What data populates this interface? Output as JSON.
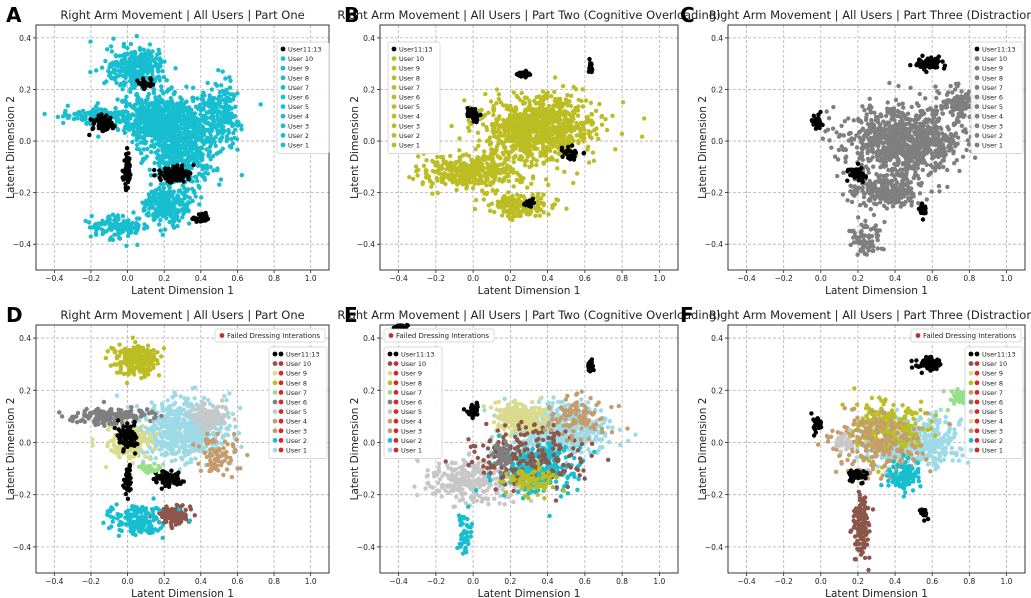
{
  "colors": {
    "black": "#000000",
    "cyan": "#17becf",
    "olive": "#bcbd22",
    "gray": "#7f7f7f",
    "brown": "#8c564b",
    "light_olive": "#dbdb8d",
    "light_gray": "#c7c7c7",
    "light_cyan": "#9edae5",
    "tan": "#c49c6e",
    "light_green": "#98df8a",
    "red": "#d62728"
  },
  "chart_data": [
    {
      "panel": "A",
      "type": "scatter",
      "title": "Right Arm Movement | All Users | Part One",
      "xlabel": "Latent Dimension 1",
      "ylabel": "Latent Dimension 2",
      "xlim": [
        -0.5,
        1.1
      ],
      "ylim": [
        -0.5,
        0.45
      ],
      "xticks": [
        "−0.4",
        "−0.2",
        "0.0",
        "0.2",
        "0.4",
        "0.6",
        "0.8",
        "1.0"
      ],
      "yticks": [
        "−0.4",
        "−0.2",
        "0.0",
        "0.2",
        "0.4"
      ],
      "legend_position": "upper right",
      "legend_title": "",
      "legend": [
        "User11:13",
        "User 10",
        "User 9",
        "User 8",
        "User 7",
        "User 6",
        "User 5",
        "User 4",
        "User 3",
        "User 2",
        "User 1"
      ],
      "legend_colors": [
        "black",
        "cyan",
        "cyan",
        "cyan",
        "cyan",
        "cyan",
        "cyan",
        "cyan",
        "cyan",
        "cyan",
        "cyan"
      ],
      "clusters": [
        {
          "c": "cyan",
          "cx": 0.2,
          "cy": 0.08,
          "rx": 0.25,
          "ry": 0.1,
          "n": 700
        },
        {
          "c": "cyan",
          "cx": 0.05,
          "cy": 0.28,
          "rx": 0.16,
          "ry": 0.08,
          "n": 300
        },
        {
          "c": "cyan",
          "cx": 0.3,
          "cy": -0.05,
          "rx": 0.18,
          "ry": 0.12,
          "n": 400
        },
        {
          "c": "cyan",
          "cx": 0.22,
          "cy": -0.25,
          "rx": 0.14,
          "ry": 0.07,
          "n": 250
        },
        {
          "c": "cyan",
          "cx": -0.05,
          "cy": -0.33,
          "rx": 0.15,
          "ry": 0.05,
          "n": 120
        },
        {
          "c": "cyan",
          "cx": 0.5,
          "cy": 0.1,
          "rx": 0.12,
          "ry": 0.12,
          "n": 200
        },
        {
          "c": "cyan",
          "cx": -0.15,
          "cy": 0.1,
          "rx": 0.2,
          "ry": 0.03,
          "n": 150
        },
        {
          "c": "black",
          "cx": -0.13,
          "cy": 0.07,
          "rx": 0.05,
          "ry": 0.03,
          "n": 90
        },
        {
          "c": "black",
          "cx": 0.26,
          "cy": -0.13,
          "rx": 0.1,
          "ry": 0.03,
          "n": 90
        },
        {
          "c": "black",
          "cx": 0.0,
          "cy": -0.12,
          "rx": 0.02,
          "ry": 0.08,
          "n": 50
        },
        {
          "c": "black",
          "cx": 0.41,
          "cy": -0.3,
          "rx": 0.05,
          "ry": 0.015,
          "n": 40
        },
        {
          "c": "black",
          "cx": 0.1,
          "cy": 0.22,
          "rx": 0.05,
          "ry": 0.02,
          "n": 30
        }
      ]
    },
    {
      "panel": "B",
      "type": "scatter",
      "title": "Right Arm Movement | All Users | Part Two (Cognitive Overloading)",
      "xlabel": "Latent Dimension 1",
      "ylabel": "Latent Dimension 2",
      "xlim": [
        -0.5,
        1.1
      ],
      "ylim": [
        -0.5,
        0.45
      ],
      "xticks": [
        "−0.4",
        "−0.2",
        "0.0",
        "0.2",
        "0.4",
        "0.6",
        "0.8",
        "1.0"
      ],
      "yticks": [
        "−0.4",
        "−0.2",
        "0.0",
        "0.2",
        "0.4"
      ],
      "legend_position": "upper left",
      "legend_title": "",
      "legend": [
        "User11:13",
        "User 10",
        "User 9",
        "User 8",
        "User 7",
        "User 6",
        "User 5",
        "User 4",
        "User 3",
        "User 2",
        "User 1"
      ],
      "legend_colors": [
        "black",
        "olive",
        "olive",
        "olive",
        "olive",
        "olive",
        "olive",
        "olive",
        "olive",
        "olive",
        "olive"
      ],
      "clusters": [
        {
          "c": "olive",
          "cx": 0.35,
          "cy": 0.05,
          "rx": 0.3,
          "ry": 0.12,
          "n": 900
        },
        {
          "c": "olive",
          "cx": 0.0,
          "cy": -0.12,
          "rx": 0.28,
          "ry": 0.07,
          "n": 400
        },
        {
          "c": "olive",
          "cx": 0.25,
          "cy": -0.25,
          "rx": 0.18,
          "ry": 0.05,
          "n": 150
        },
        {
          "c": "black",
          "cx": 0.0,
          "cy": 0.1,
          "rx": 0.03,
          "ry": 0.03,
          "n": 30
        },
        {
          "c": "black",
          "cx": 0.27,
          "cy": 0.26,
          "rx": 0.04,
          "ry": 0.012,
          "n": 30
        },
        {
          "c": "black",
          "cx": 0.63,
          "cy": 0.29,
          "rx": 0.015,
          "ry": 0.02,
          "n": 30
        },
        {
          "c": "black",
          "cx": 0.52,
          "cy": -0.05,
          "rx": 0.05,
          "ry": 0.025,
          "n": 40
        },
        {
          "c": "black",
          "cx": 0.3,
          "cy": -0.24,
          "rx": 0.03,
          "ry": 0.015,
          "n": 20
        }
      ]
    },
    {
      "panel": "C",
      "type": "scatter",
      "title": "Right Arm Movement | All Users | Part Three (Distractions)",
      "xlabel": "Latent Dimension 1",
      "ylabel": "Latent Dimension 2",
      "xlim": [
        -0.5,
        1.1
      ],
      "ylim": [
        -0.5,
        0.45
      ],
      "xticks": [
        "−0.4",
        "−0.2",
        "0.0",
        "0.2",
        "0.4",
        "0.6",
        "0.8",
        "1.0"
      ],
      "yticks": [
        "−0.4",
        "−0.2",
        "0.0",
        "0.2",
        "0.4"
      ],
      "legend_position": "upper right",
      "legend_title": "",
      "legend": [
        "User11:13",
        "User 10",
        "User 9",
        "User 8",
        "User 7",
        "User 6",
        "User 5",
        "User 4",
        "User 3",
        "User 2",
        "User 1"
      ],
      "legend_colors": [
        "black",
        "gray",
        "gray",
        "gray",
        "gray",
        "gray",
        "gray",
        "gray",
        "gray",
        "gray",
        "gray"
      ],
      "clusters": [
        {
          "c": "gray",
          "cx": 0.45,
          "cy": 0.0,
          "rx": 0.3,
          "ry": 0.13,
          "n": 900
        },
        {
          "c": "gray",
          "cx": 0.35,
          "cy": -0.2,
          "rx": 0.2,
          "ry": 0.06,
          "n": 250
        },
        {
          "c": "gray",
          "cx": 0.25,
          "cy": -0.38,
          "rx": 0.08,
          "ry": 0.08,
          "n": 80
        },
        {
          "c": "gray",
          "cx": 0.75,
          "cy": 0.15,
          "rx": 0.12,
          "ry": 0.06,
          "n": 120
        },
        {
          "c": "black",
          "cx": 0.58,
          "cy": 0.3,
          "rx": 0.07,
          "ry": 0.025,
          "n": 90
        },
        {
          "c": "black",
          "cx": -0.02,
          "cy": 0.07,
          "rx": 0.03,
          "ry": 0.03,
          "n": 30
        },
        {
          "c": "black",
          "cx": 0.2,
          "cy": -0.13,
          "rx": 0.05,
          "ry": 0.03,
          "n": 50
        },
        {
          "c": "black",
          "cx": 0.55,
          "cy": -0.27,
          "rx": 0.02,
          "ry": 0.02,
          "n": 25
        }
      ]
    },
    {
      "panel": "D",
      "type": "scatter",
      "title": "Right Arm Movement | All Users | Part One",
      "xlabel": "Latent Dimension 1",
      "ylabel": "Latent Dimension 2",
      "xlim": [
        -0.5,
        1.1
      ],
      "ylim": [
        -0.5,
        0.45
      ],
      "xticks": [
        "−0.4",
        "−0.2",
        "0.0",
        "0.2",
        "0.4",
        "0.6",
        "0.8",
        "1.0"
      ],
      "yticks": [
        "−0.4",
        "−0.2",
        "0.0",
        "0.2",
        "0.4"
      ],
      "legend_position": "upper right",
      "legend_title": "Failed Dressing Interations",
      "legend": [
        "User11:13",
        "User 10",
        "User 9",
        "User 8",
        "User 7",
        "User 6",
        "User 5",
        "User 4",
        "User 3",
        "User 2",
        "User 1"
      ],
      "legend_colors": [
        "black",
        "brown",
        "light_olive",
        "olive",
        "light_green",
        "gray",
        "light_gray",
        "tan",
        "tan",
        "cyan",
        "light_cyan"
      ],
      "clusters": [
        {
          "c": "light_cyan",
          "cx": 0.3,
          "cy": 0.05,
          "rx": 0.25,
          "ry": 0.12,
          "n": 600
        },
        {
          "c": "light_olive",
          "cx": 0.0,
          "cy": 0.0,
          "rx": 0.12,
          "ry": 0.06,
          "n": 200
        },
        {
          "c": "olive",
          "cx": 0.05,
          "cy": 0.32,
          "rx": 0.12,
          "ry": 0.06,
          "n": 250
        },
        {
          "c": "gray",
          "cx": -0.1,
          "cy": 0.1,
          "rx": 0.25,
          "ry": 0.03,
          "n": 150
        },
        {
          "c": "black",
          "cx": 0.0,
          "cy": 0.02,
          "rx": 0.05,
          "ry": 0.05,
          "n": 80
        },
        {
          "c": "black",
          "cx": 0.22,
          "cy": -0.14,
          "rx": 0.08,
          "ry": 0.03,
          "n": 80
        },
        {
          "c": "black",
          "cx": 0.0,
          "cy": -0.15,
          "rx": 0.02,
          "ry": 0.06,
          "n": 40
        },
        {
          "c": "brown",
          "cx": 0.25,
          "cy": -0.28,
          "rx": 0.08,
          "ry": 0.04,
          "n": 120
        },
        {
          "c": "cyan",
          "cx": 0.05,
          "cy": -0.3,
          "rx": 0.15,
          "ry": 0.06,
          "n": 150
        },
        {
          "c": "tan",
          "cx": 0.5,
          "cy": -0.05,
          "rx": 0.1,
          "ry": 0.08,
          "n": 80
        },
        {
          "c": "light_green",
          "cx": 0.12,
          "cy": -0.1,
          "rx": 0.05,
          "ry": 0.02,
          "n": 30
        },
        {
          "c": "light_gray",
          "cx": 0.45,
          "cy": 0.1,
          "rx": 0.1,
          "ry": 0.05,
          "n": 80
        }
      ]
    },
    {
      "panel": "E",
      "type": "scatter",
      "title": "Right Arm Movement | All Users | Part Two (Cognitive Overloading)",
      "xlabel": "Latent Dimension 1",
      "ylabel": "Latent Dimension 2",
      "xlim": [
        -0.5,
        1.1
      ],
      "ylim": [
        -0.5,
        0.45
      ],
      "xticks": [
        "−0.4",
        "−0.2",
        "0.0",
        "0.2",
        "0.4",
        "0.6",
        "0.8",
        "1.0"
      ],
      "yticks": [
        "−0.4",
        "−0.2",
        "0.0",
        "0.2",
        "0.4"
      ],
      "legend_position": "upper left",
      "legend_title": "Failed Dressing Interations",
      "legend": [
        "User11:13",
        "User 10",
        "User 9",
        "User 8",
        "User 7",
        "User 6",
        "User 5",
        "User 4",
        "User 3",
        "User 2",
        "User 1"
      ],
      "legend_colors": [
        "black",
        "brown",
        "light_olive",
        "olive",
        "light_green",
        "gray",
        "light_gray",
        "tan",
        "tan",
        "cyan",
        "light_cyan"
      ],
      "clusters": [
        {
          "c": "light_cyan",
          "cx": 0.45,
          "cy": 0.05,
          "rx": 0.25,
          "ry": 0.1,
          "n": 500
        },
        {
          "c": "light_olive",
          "cx": 0.25,
          "cy": 0.1,
          "rx": 0.15,
          "ry": 0.06,
          "n": 200
        },
        {
          "c": "light_gray",
          "cx": 0.0,
          "cy": -0.15,
          "rx": 0.28,
          "ry": 0.08,
          "n": 300
        },
        {
          "c": "cyan",
          "cx": 0.35,
          "cy": -0.1,
          "rx": 0.2,
          "ry": 0.1,
          "n": 300
        },
        {
          "c": "brown",
          "cx": 0.3,
          "cy": -0.05,
          "rx": 0.3,
          "ry": 0.12,
          "n": 200
        },
        {
          "c": "tan",
          "cx": 0.55,
          "cy": 0.1,
          "rx": 0.2,
          "ry": 0.08,
          "n": 100
        },
        {
          "c": "olive",
          "cx": 0.3,
          "cy": -0.15,
          "rx": 0.15,
          "ry": 0.05,
          "n": 80
        },
        {
          "c": "black",
          "cx": 0.0,
          "cy": 0.12,
          "rx": 0.03,
          "ry": 0.03,
          "n": 25
        },
        {
          "c": "black",
          "cx": 0.63,
          "cy": 0.3,
          "rx": 0.015,
          "ry": 0.02,
          "n": 25
        },
        {
          "c": "black",
          "cx": -0.38,
          "cy": 0.45,
          "rx": 0.04,
          "ry": 0.02,
          "n": 30
        },
        {
          "c": "cyan",
          "cx": -0.05,
          "cy": -0.35,
          "rx": 0.05,
          "ry": 0.08,
          "n": 40
        },
        {
          "c": "gray",
          "cx": 0.15,
          "cy": -0.05,
          "rx": 0.05,
          "ry": 0.04,
          "n": 40
        }
      ]
    },
    {
      "panel": "F",
      "type": "scatter",
      "title": "Right Arm Movement | All Users | Part Three (Distractions)",
      "xlabel": "Latent Dimension 1",
      "ylabel": "Latent Dimension 2",
      "xlim": [
        -0.5,
        1.1
      ],
      "ylim": [
        -0.5,
        0.45
      ],
      "xticks": [
        "−0.4",
        "−0.2",
        "0.0",
        "0.2",
        "0.4",
        "0.6",
        "0.8",
        "1.0"
      ],
      "yticks": [
        "−0.4",
        "−0.2",
        "0.0",
        "0.2",
        "0.4"
      ],
      "legend_position": "upper right",
      "legend_title": "Failed Dressing Interations",
      "legend": [
        "User11:13",
        "User 10",
        "User 9",
        "User 8",
        "User 7",
        "User 6",
        "User 5",
        "User 4",
        "User 3",
        "User 2",
        "User 1"
      ],
      "legend_colors": [
        "black",
        "brown",
        "light_olive",
        "olive",
        "tan",
        "gray",
        "light_gray",
        "light_olive",
        "tan",
        "cyan",
        "light_cyan"
      ],
      "clusters": [
        {
          "c": "light_cyan",
          "cx": 0.5,
          "cy": 0.0,
          "rx": 0.25,
          "ry": 0.1,
          "n": 500
        },
        {
          "c": "olive",
          "cx": 0.35,
          "cy": 0.05,
          "rx": 0.2,
          "ry": 0.1,
          "n": 250
        },
        {
          "c": "tan",
          "cx": 0.3,
          "cy": 0.0,
          "rx": 0.25,
          "ry": 0.12,
          "n": 200
        },
        {
          "c": "cyan",
          "cx": 0.45,
          "cy": -0.13,
          "rx": 0.08,
          "ry": 0.05,
          "n": 120
        },
        {
          "c": "light_green",
          "cx": 0.75,
          "cy": 0.17,
          "rx": 0.06,
          "ry": 0.03,
          "n": 60
        },
        {
          "c": "black",
          "cx": 0.58,
          "cy": 0.3,
          "rx": 0.07,
          "ry": 0.025,
          "n": 80
        },
        {
          "c": "black",
          "cx": -0.02,
          "cy": 0.07,
          "rx": 0.03,
          "ry": 0.03,
          "n": 30
        },
        {
          "c": "black",
          "cx": 0.2,
          "cy": -0.13,
          "rx": 0.05,
          "ry": 0.025,
          "n": 40
        },
        {
          "c": "black",
          "cx": 0.55,
          "cy": -0.27,
          "rx": 0.02,
          "ry": 0.02,
          "n": 25
        },
        {
          "c": "brown",
          "cx": 0.22,
          "cy": -0.32,
          "rx": 0.05,
          "ry": 0.12,
          "n": 120
        },
        {
          "c": "light_gray",
          "cx": 0.12,
          "cy": 0.0,
          "rx": 0.05,
          "ry": 0.04,
          "n": 40
        }
      ]
    }
  ]
}
